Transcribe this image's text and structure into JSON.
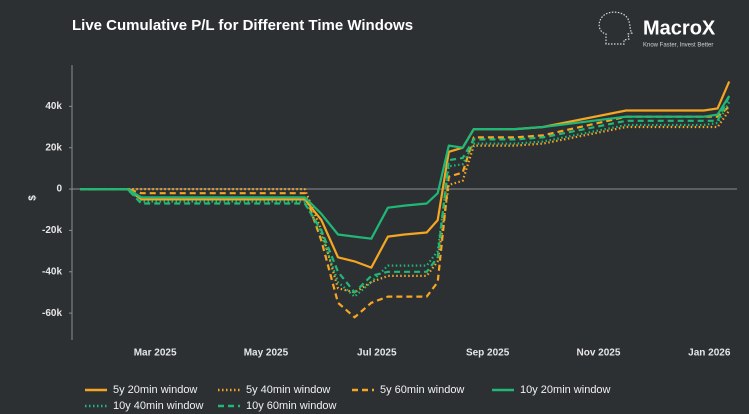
{
  "brand": {
    "name": "MacroX",
    "tagline": "Know Faster, Invest Better"
  },
  "chart_data": {
    "type": "line",
    "title": "Live Cumulative P/L for Different Time Windows",
    "y_label": "$",
    "x": [
      0.65,
      1.5,
      1.75,
      3.0,
      4.7,
      5.0,
      5.3,
      5.6,
      5.9,
      6.2,
      6.5,
      6.9,
      7.1,
      7.3,
      7.55,
      7.75,
      8.5,
      9.0,
      10.5,
      11.9,
      12.15,
      12.36
    ],
    "xlim": [
      0.5,
      12.5
    ],
    "xticks": [
      {
        "value": 2,
        "label": "Mar 2025"
      },
      {
        "value": 4,
        "label": "May 2025"
      },
      {
        "value": 6,
        "label": "Jul 2025"
      },
      {
        "value": 8,
        "label": "Sep 2025"
      },
      {
        "value": 10,
        "label": "Nov 2025"
      },
      {
        "value": 12,
        "label": "Jan 2026"
      }
    ],
    "ylim": [
      -73000,
      60000
    ],
    "yticks": [
      {
        "value": 40000,
        "label": "40k"
      },
      {
        "value": 20000,
        "label": "20k"
      },
      0,
      {
        "value": -20000,
        "label": "-20k"
      },
      {
        "value": -40000,
        "label": "-40k"
      },
      {
        "value": -60000,
        "label": "-60k"
      }
    ],
    "grid": false,
    "legend": "bottom",
    "series": [
      {
        "name": "5y 20min window",
        "color": "#f5a623",
        "dash": "solid",
        "values": [
          0,
          0,
          -5000,
          -5000,
          -5000,
          -15000,
          -33000,
          -35000,
          -38000,
          -23000,
          -22000,
          -21000,
          -15000,
          18000,
          20000,
          29000,
          29000,
          30000,
          38000,
          38000,
          39000,
          52000
        ]
      },
      {
        "name": "5y 40min window",
        "color": "#f5a623",
        "dash": "dotted",
        "values": [
          0,
          0,
          0,
          0,
          0,
          -20000,
          -48000,
          -50000,
          -45000,
          -42000,
          -42000,
          -42000,
          -35000,
          2000,
          4000,
          21000,
          21000,
          22000,
          30000,
          30000,
          30000,
          38000
        ]
      },
      {
        "name": "5y 60min window",
        "color": "#f5a623",
        "dash": "dashed",
        "values": [
          0,
          0,
          -2000,
          -2000,
          -2000,
          -25000,
          -55000,
          -62000,
          -55000,
          -52000,
          -52000,
          -52000,
          -45000,
          6000,
          8000,
          25000,
          25000,
          26000,
          35000,
          35000,
          35000,
          40000
        ]
      },
      {
        "name": "10y 20min window",
        "color": "#1fb877",
        "dash": "solid",
        "values": [
          0,
          0,
          -4000,
          -4000,
          -4000,
          -12000,
          -22000,
          -23000,
          -24000,
          -9000,
          -8000,
          -7000,
          -2000,
          21000,
          20000,
          29000,
          29000,
          30000,
          35000,
          35000,
          36000,
          45000
        ]
      },
      {
        "name": "10y 40min window",
        "color": "#1fb877",
        "dash": "dotted",
        "values": [
          0,
          0,
          -6000,
          -6000,
          -6000,
          -22000,
          -45000,
          -52000,
          -45000,
          -37000,
          -37000,
          -37000,
          -30000,
          11000,
          12000,
          22000,
          22000,
          23000,
          31000,
          31000,
          32000,
          42000
        ]
      },
      {
        "name": "10y 60min window",
        "color": "#1fb877",
        "dash": "dashed",
        "values": [
          0,
          0,
          -7000,
          -7000,
          -7000,
          -20000,
          -40000,
          -50000,
          -42000,
          -40000,
          -40000,
          -40000,
          -33000,
          14000,
          15000,
          24000,
          24000,
          25000,
          33000,
          33000,
          33000,
          45000
        ]
      }
    ]
  }
}
